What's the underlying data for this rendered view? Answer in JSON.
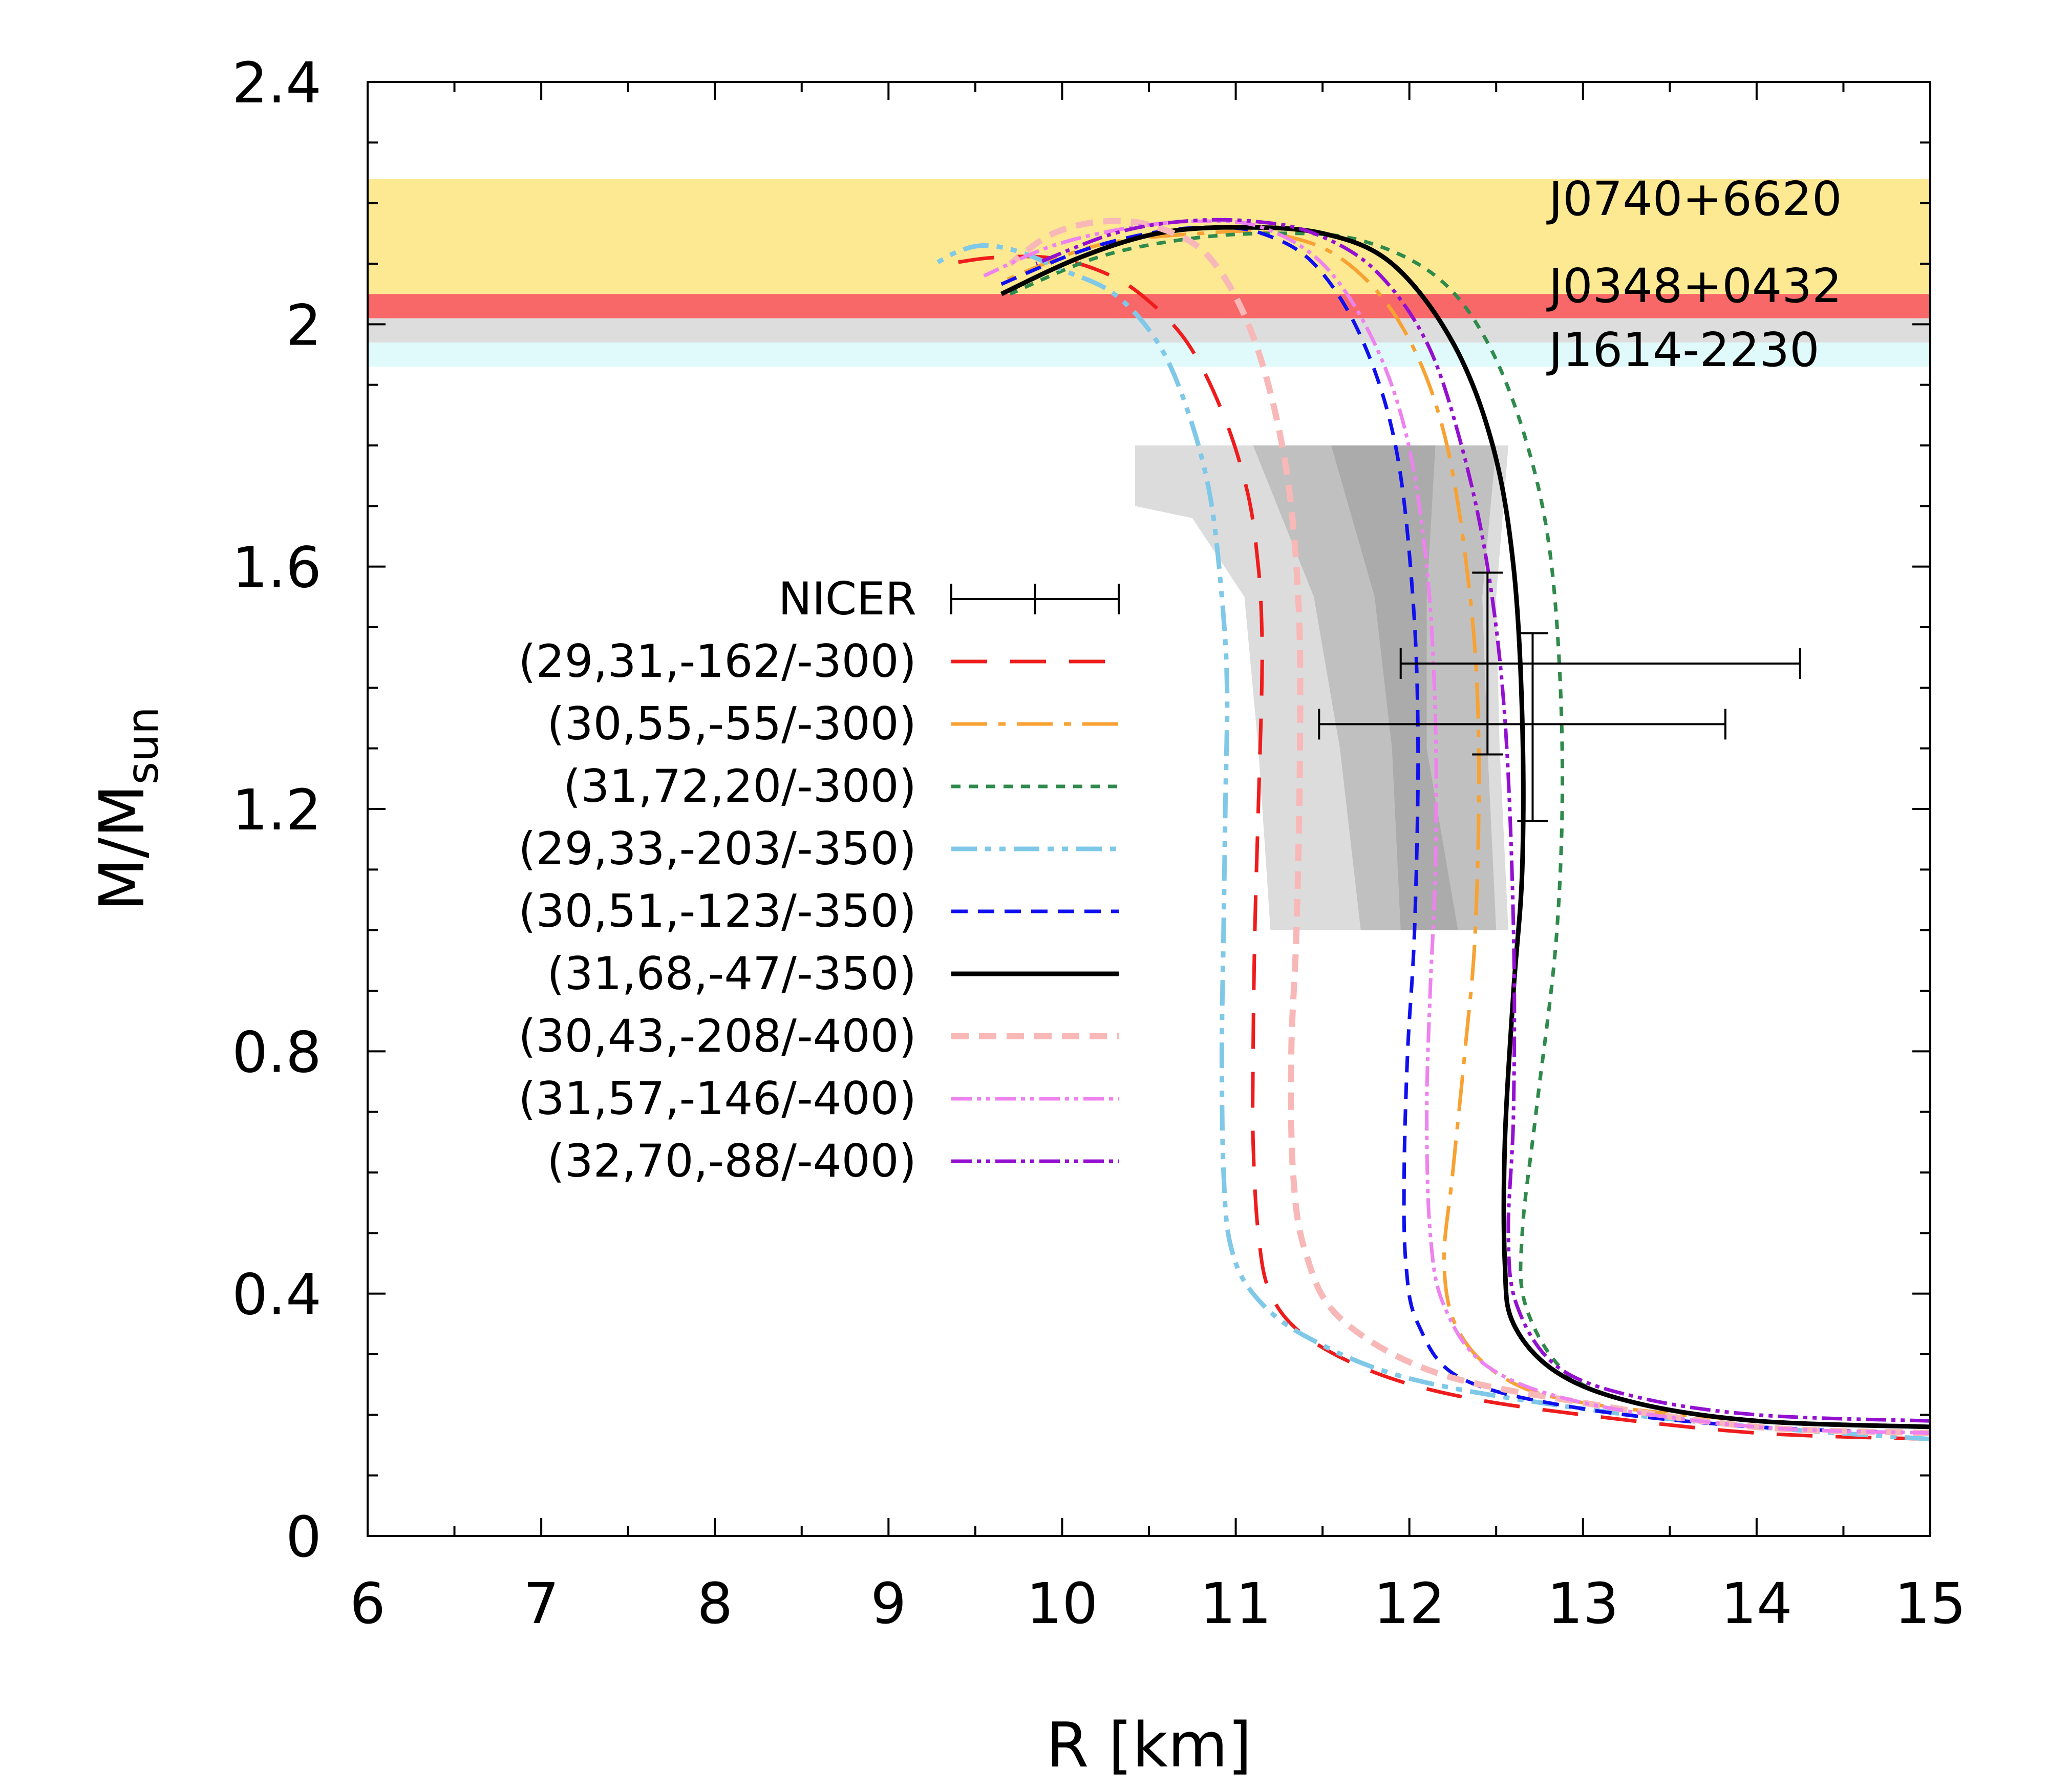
{
  "chart_data": {
    "type": "line",
    "title": "",
    "xlabel": "R [km]",
    "ylabel_main": "M/M",
    "ylabel_sub": "sun",
    "xlim": [
      6,
      15
    ],
    "ylim": [
      0,
      2.4
    ],
    "xticks": [
      6,
      7,
      8,
      9,
      10,
      11,
      12,
      13,
      14,
      15
    ],
    "xtick_labels": [
      "6",
      "7",
      "8",
      "9",
      "10",
      "11",
      "12",
      "13",
      "14",
      "15"
    ],
    "yticks": [
      0,
      0.4,
      0.8,
      1.2,
      1.6,
      2.0,
      2.4
    ],
    "ytick_labels": [
      "0",
      "0.4",
      "0.8",
      "1.2",
      "1.6",
      "2",
      "2.4"
    ],
    "bands": [
      {
        "name": "J0740+6620",
        "ymin": 2.04,
        "ymax": 2.24,
        "color": "#fde992"
      },
      {
        "name": "J0348+0432",
        "ymin": 2.01,
        "ymax": 2.05,
        "color": "#f96868"
      },
      {
        "name": "J1614-2230",
        "ymin": 1.93,
        "ymax": 2.01,
        "color": "#e0fafb",
        "overlap_color": "#dddddd"
      }
    ],
    "shaded_regions": [
      {
        "name": "outer",
        "color": "#dcdcdc",
        "polygon": [
          [
            10.42,
            1.8
          ],
          [
            12.57,
            1.8
          ],
          [
            12.5,
            1.55
          ],
          [
            12.52,
            1.3
          ],
          [
            12.57,
            1.0
          ],
          [
            11.2,
            1.0
          ],
          [
            11.13,
            1.3
          ],
          [
            11.05,
            1.55
          ],
          [
            10.75,
            1.68
          ],
          [
            10.42,
            1.7
          ]
        ]
      },
      {
        "name": "inner",
        "color": "#c0c0c0",
        "polygon": [
          [
            11.1,
            1.8
          ],
          [
            12.5,
            1.8
          ],
          [
            12.42,
            1.55
          ],
          [
            12.45,
            1.3
          ],
          [
            12.5,
            1.0
          ],
          [
            11.72,
            1.0
          ],
          [
            11.6,
            1.3
          ],
          [
            11.45,
            1.55
          ]
        ]
      },
      {
        "name": "core",
        "color": "#ababab",
        "polygon": [
          [
            11.55,
            1.8
          ],
          [
            12.15,
            1.8
          ],
          [
            12.1,
            1.55
          ],
          [
            12.1,
            1.3
          ],
          [
            12.28,
            1.0
          ],
          [
            11.95,
            1.0
          ],
          [
            11.9,
            1.3
          ],
          [
            11.8,
            1.55
          ]
        ]
      }
    ],
    "errorbars": [
      {
        "name": "NICER-1",
        "x": 12.45,
        "xerr_low": 11.95,
        "xerr_high": 14.25,
        "y": 1.44,
        "yerr_low": 1.29,
        "yerr_high": 1.59
      },
      {
        "name": "NICER-2",
        "x": 12.71,
        "xerr_low": 11.48,
        "xerr_high": 13.82,
        "y": 1.34,
        "yerr_low": 1.18,
        "yerr_high": 1.49
      }
    ],
    "legend": {
      "position": "center-left",
      "nicer_label": "NICER"
    },
    "series": [
      {
        "name": "(29,31,-162/-300)",
        "color": "#ee1c1c",
        "dash": "70,45",
        "width": 7,
        "x": [
          15.0,
          14.0,
          13.0,
          12.3,
          11.8,
          11.4,
          11.2,
          11.13,
          11.1,
          11.1,
          11.11,
          11.13,
          11.15,
          11.15,
          11.13,
          11.07,
          10.93,
          10.72,
          10.45,
          10.2,
          9.92,
          9.6,
          9.35
        ],
        "y": [
          0.16,
          0.17,
          0.2,
          0.23,
          0.27,
          0.33,
          0.4,
          0.5,
          0.65,
          0.8,
          1.0,
          1.2,
          1.4,
          1.5,
          1.6,
          1.72,
          1.85,
          1.97,
          2.05,
          2.09,
          2.11,
          2.11,
          2.1
        ]
      },
      {
        "name": "(30,55,-55/-300)",
        "color": "#f7a233",
        "dash": "70,22,14,22",
        "width": 7,
        "x": [
          15.0,
          14.0,
          13.0,
          12.55,
          12.28,
          12.2,
          12.25,
          12.32,
          12.38,
          12.4,
          12.35,
          12.2,
          11.95,
          11.6,
          11.2,
          10.8,
          10.2,
          9.65
        ],
        "y": [
          0.18,
          0.19,
          0.22,
          0.26,
          0.34,
          0.45,
          0.6,
          0.8,
          1.0,
          1.3,
          1.55,
          1.82,
          2.0,
          2.11,
          2.15,
          2.15,
          2.13,
          2.07
        ]
      },
      {
        "name": "(31,72,20/-300)",
        "color": "#2f8a4c",
        "dash": "18,16",
        "width": 7,
        "x": [
          15.0,
          14.0,
          13.3,
          12.9,
          12.67,
          12.65,
          12.73,
          12.85,
          12.88,
          12.82,
          12.68,
          12.45,
          12.15,
          11.7,
          11.2,
          10.7,
          10.2,
          9.7
        ],
        "y": [
          0.18,
          0.19,
          0.22,
          0.27,
          0.38,
          0.5,
          0.7,
          1.0,
          1.3,
          1.6,
          1.8,
          1.97,
          2.08,
          2.14,
          2.15,
          2.14,
          2.11,
          2.05
        ]
      },
      {
        "name": "(29,33,-203/-350)",
        "color": "#80c8e8",
        "dash": "50,16,12,16,12,16",
        "width": 9,
        "x": [
          15.0,
          14.0,
          13.0,
          12.0,
          11.4,
          11.1,
          10.97,
          10.93,
          10.92,
          10.93,
          10.94,
          10.95,
          10.92,
          10.85,
          10.72,
          10.55,
          10.3,
          10.0,
          9.75,
          9.55,
          9.4,
          9.27
        ],
        "y": [
          0.16,
          0.18,
          0.21,
          0.26,
          0.33,
          0.4,
          0.48,
          0.6,
          0.8,
          1.0,
          1.2,
          1.4,
          1.55,
          1.72,
          1.86,
          1.97,
          2.05,
          2.09,
          2.12,
          2.13,
          2.12,
          2.1
        ]
      },
      {
        "name": "(30,51,-123/-350)",
        "color": "#1010ee",
        "dash": "32,20",
        "width": 7,
        "x": [
          15.0,
          14.0,
          13.0,
          12.3,
          12.05,
          11.98,
          11.97,
          11.99,
          12.03,
          12.05,
          12.02,
          11.92,
          11.72,
          11.45,
          11.15,
          10.85,
          10.5,
          10.1,
          9.6
        ],
        "y": [
          0.17,
          0.18,
          0.21,
          0.26,
          0.35,
          0.45,
          0.6,
          0.8,
          1.0,
          1.3,
          1.55,
          1.8,
          1.98,
          2.1,
          2.15,
          2.16,
          2.15,
          2.12,
          2.06
        ]
      },
      {
        "name": "(31,68,-47/-350)",
        "color": "#000000",
        "dash": "none",
        "width": 9,
        "x": [
          15.0,
          14.0,
          13.3,
          12.85,
          12.6,
          12.55,
          12.55,
          12.6,
          12.65,
          12.65,
          12.6,
          12.48,
          12.25,
          11.9,
          11.5,
          11.0,
          10.55,
          10.1,
          9.65
        ],
        "y": [
          0.18,
          0.19,
          0.22,
          0.27,
          0.35,
          0.45,
          0.65,
          0.9,
          1.1,
          1.35,
          1.6,
          1.8,
          1.97,
          2.1,
          2.15,
          2.16,
          2.15,
          2.11,
          2.05
        ]
      },
      {
        "name": "(30,43,-208/-400)",
        "color": "#f8b8b8",
        "dash": "34,20",
        "width": 12,
        "x": [
          15.0,
          14.0,
          13.0,
          12.15,
          11.6,
          11.4,
          11.33,
          11.32,
          11.35,
          11.37,
          11.36,
          11.28,
          11.1,
          10.85,
          10.55,
          10.25,
          9.95,
          9.7
        ],
        "y": [
          0.17,
          0.18,
          0.22,
          0.27,
          0.36,
          0.47,
          0.6,
          0.8,
          1.0,
          1.3,
          1.55,
          1.78,
          1.98,
          2.11,
          2.16,
          2.17,
          2.15,
          2.1
        ]
      },
      {
        "name": "(31,57,-146/-400)",
        "color": "#ee82ee",
        "dash": "40,10,8,10,8,10",
        "width": 7,
        "x": [
          15.0,
          14.0,
          13.0,
          12.45,
          12.2,
          12.12,
          12.1,
          12.12,
          12.15,
          12.15,
          12.1,
          11.98,
          11.78,
          11.5,
          11.15,
          10.8,
          10.4,
          9.95,
          9.55
        ],
        "y": [
          0.17,
          0.18,
          0.22,
          0.28,
          0.38,
          0.5,
          0.7,
          0.9,
          1.1,
          1.35,
          1.6,
          1.82,
          1.98,
          2.1,
          2.16,
          2.17,
          2.16,
          2.13,
          2.08
        ]
      },
      {
        "name": "(32,70,-88/-400)",
        "color": "#9410d0",
        "dash": "40,10,8,10,8,10",
        "width": 7,
        "x": [
          15.0,
          14.0,
          13.3,
          12.85,
          12.62,
          12.57,
          12.6,
          12.6,
          12.55,
          12.45,
          12.3,
          12.1,
          11.8,
          11.45,
          11.1,
          10.7,
          10.3,
          9.85
        ],
        "y": [
          0.19,
          0.2,
          0.23,
          0.28,
          0.38,
          0.5,
          0.7,
          1.0,
          1.35,
          1.6,
          1.8,
          1.97,
          2.09,
          2.15,
          2.17,
          2.17,
          2.15,
          2.1
        ]
      }
    ]
  }
}
